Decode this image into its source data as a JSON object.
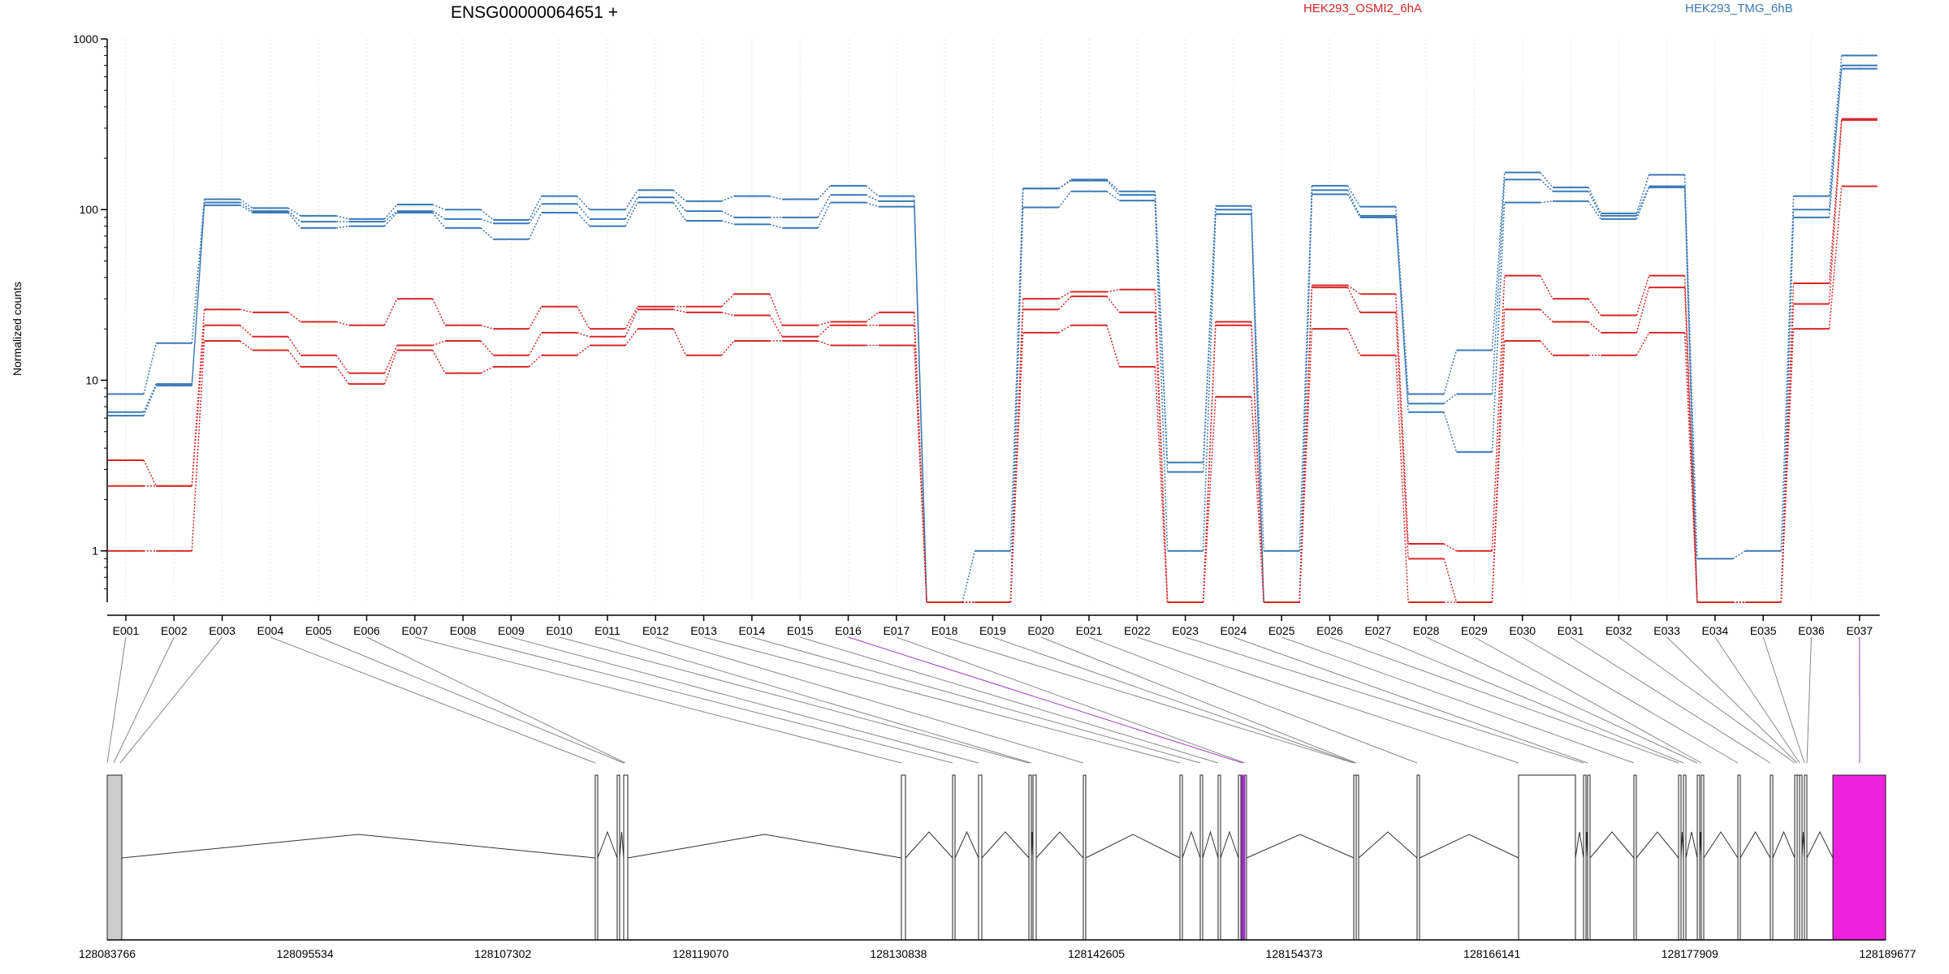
{
  "chart_data": {
    "type": "line",
    "title": "ENSG00000064651 +",
    "ylabel": "Normalized counts",
    "y_scale": "log",
    "ylim": [
      0.5,
      1000
    ],
    "y_ticks": [
      "1000",
      "100",
      "10",
      "1"
    ],
    "y_tick_values": [
      1000,
      100,
      10,
      1
    ],
    "grid": "vertical dotted lines at exon positions",
    "legend": [
      {
        "name": "HEK293_OSMI2_6hA",
        "color": "#d62728"
      },
      {
        "name": "HEK293_TMG_6hB",
        "color": "#3a78b5"
      }
    ],
    "categories": [
      "E001",
      "E002",
      "E003",
      "E004",
      "E005",
      "E006",
      "E007",
      "E008",
      "E009",
      "E010",
      "E011",
      "E012",
      "E013",
      "E014",
      "E015",
      "E016",
      "E017",
      "E018",
      "E019",
      "E020",
      "E021",
      "E022",
      "E023",
      "E024",
      "E025",
      "E026",
      "E027",
      "E028",
      "E029",
      "E030",
      "E031",
      "E032",
      "E033",
      "E034",
      "E035",
      "E036",
      "E037"
    ],
    "highlighted_exons": [
      "E016",
      "E037"
    ],
    "series": [
      {
        "group": "HEK293_TMG_6hB",
        "color": "#3a78b5",
        "values": [
          8.3,
          16.5,
          115,
          102,
          92,
          88,
          107,
          100,
          87,
          120,
          100,
          130,
          112,
          120,
          115,
          138,
          120,
          0.5,
          1.0,
          133,
          150,
          128,
          3.3,
          105,
          1.0,
          138,
          104,
          8.3,
          15,
          165,
          135,
          95,
          160,
          0.9,
          1.0,
          120,
          800
        ]
      },
      {
        "group": "HEK293_TMG_6hB",
        "color": "#3a78b5",
        "values": [
          6.5,
          9.5,
          110,
          98,
          85,
          85,
          98,
          88,
          83,
          108,
          88,
          118,
          98,
          90,
          90,
          122,
          112,
          0.5,
          0.5,
          133,
          148,
          122,
          2.9,
          100,
          0.5,
          130,
          92,
          7.3,
          8.3,
          150,
          128,
          92,
          137,
          0.5,
          0.5,
          100,
          700
        ]
      },
      {
        "group": "HEK293_TMG_6hB",
        "color": "#3a78b5",
        "values": [
          6.2,
          9.3,
          106,
          96,
          78,
          80,
          96,
          78,
          67,
          96,
          80,
          110,
          86,
          82,
          78,
          110,
          104,
          0.5,
          0.5,
          103,
          128,
          113,
          1.0,
          94,
          0.5,
          123,
          90,
          6.5,
          3.8,
          110,
          112,
          88,
          135,
          0.5,
          0.5,
          90,
          670
        ]
      },
      {
        "group": "HEK293_OSMI2_6hA",
        "color": "#d62728",
        "values": [
          3.4,
          2.4,
          26,
          25,
          22,
          21,
          30,
          21,
          20,
          27,
          20,
          27,
          27,
          32,
          21,
          22,
          25,
          0.5,
          0.5,
          30,
          33,
          34,
          0.5,
          22,
          0.5,
          36,
          32,
          1.1,
          1.0,
          41,
          30,
          24,
          41,
          0.5,
          0.5,
          37,
          340
        ]
      },
      {
        "group": "HEK293_OSMI2_6hA",
        "color": "#d62728",
        "values": [
          2.4,
          2.4,
          21,
          18,
          14,
          11,
          16,
          17,
          14,
          19,
          18,
          26,
          25,
          24,
          18,
          21,
          21,
          0.5,
          0.5,
          26,
          31,
          25,
          0.5,
          21,
          0.5,
          35,
          25,
          0.9,
          0.5,
          26,
          22,
          19,
          35,
          0.5,
          0.5,
          28,
          335
        ]
      },
      {
        "group": "HEK293_OSMI2_6hA",
        "color": "#d62728",
        "values": [
          1.0,
          1.0,
          17,
          15,
          12,
          9.5,
          15,
          11,
          12,
          14,
          16,
          20,
          14,
          17,
          17,
          16,
          16,
          0.5,
          0.5,
          19,
          21,
          12,
          0.5,
          8,
          0.5,
          20,
          14,
          0.5,
          0.5,
          17,
          14,
          14,
          19,
          0.5,
          0.5,
          20,
          137
        ]
      }
    ],
    "gene_model": {
      "positions": [
        "128083766",
        "128095534",
        "128107302",
        "128119070",
        "128130838",
        "128142605",
        "128154373",
        "128166141",
        "128177909",
        "128189677"
      ]
    }
  }
}
